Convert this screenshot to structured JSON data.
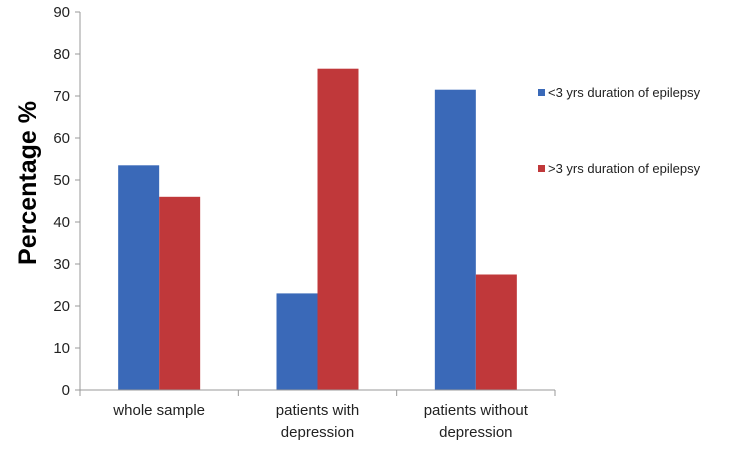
{
  "chart_data": {
    "type": "bar",
    "title": "",
    "xlabel": "",
    "ylabel": "Percentage %",
    "ylim": [
      0,
      90
    ],
    "yticks": [
      0,
      10,
      20,
      30,
      40,
      50,
      60,
      70,
      80,
      90
    ],
    "grid": false,
    "legend_position": "right",
    "categories": [
      [
        "whole sample"
      ],
      [
        "patients with",
        "depression"
      ],
      [
        "patients without",
        "depression"
      ]
    ],
    "series": [
      {
        "name": "<3 yrs duration of epilepsy",
        "color": "#3a69b8",
        "values": [
          53.5,
          23,
          71.5
        ]
      },
      {
        "name": ">3 yrs duration of epilepsy",
        "color": "#c0383a",
        "values": [
          46,
          76.5,
          27.5
        ]
      }
    ]
  }
}
